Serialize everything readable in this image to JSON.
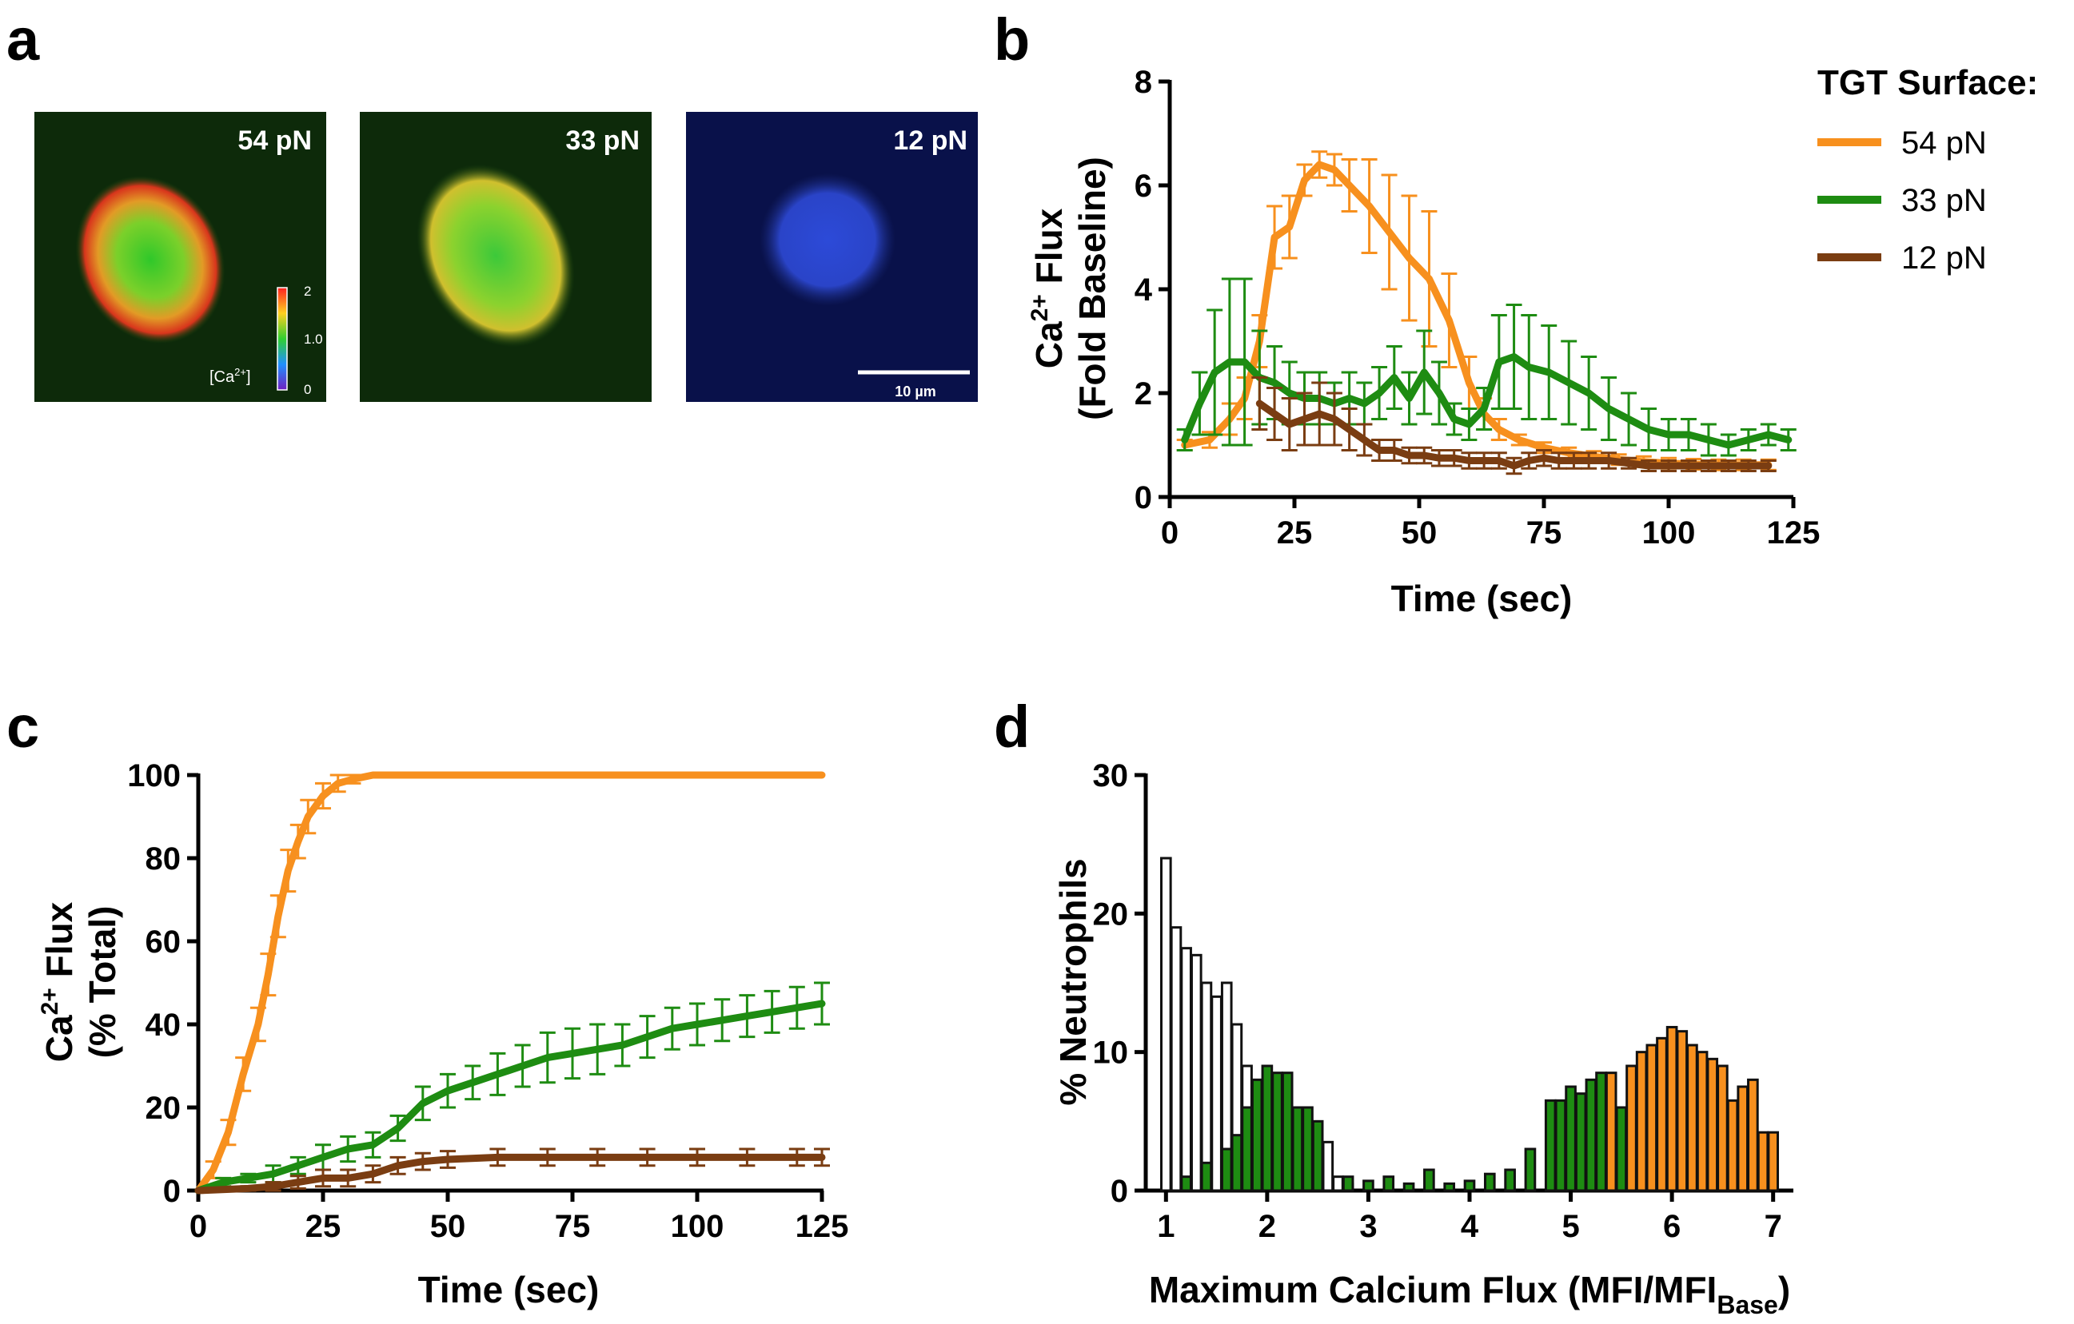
{
  "panels": {
    "a": {
      "letter": "a",
      "images": [
        {
          "label": "54 pN",
          "signal": "high calcium (red/green)"
        },
        {
          "label": "33 pN",
          "signal": "medium calcium (yellow/green)"
        },
        {
          "label": "12 pN",
          "signal": "low calcium (blue)"
        }
      ],
      "colorbar": {
        "ticks": [
          "2",
          "1.0",
          "0"
        ],
        "label": "[Ca2+]"
      },
      "scale_bar": "10 µm"
    },
    "b": {
      "letter": "b"
    },
    "c": {
      "letter": "c"
    },
    "d": {
      "letter": "d"
    }
  },
  "legend": {
    "title": "TGT Surface:",
    "items": [
      {
        "label": "54 pN",
        "color": "#F7901E"
      },
      {
        "label": "33 pN",
        "color": "#1E8C12"
      },
      {
        "label": "12 pN",
        "color": "#7A3D12"
      }
    ]
  },
  "chart_data": [
    {
      "id": "b",
      "type": "line",
      "title": "",
      "xlabel": "Time (sec)",
      "ylabel_line1": "Ca2+ Flux",
      "ylabel_line2": "(Fold Baseline)",
      "xlim": [
        0,
        125
      ],
      "ylim": [
        0,
        8
      ],
      "xticks": [
        0,
        25,
        50,
        75,
        100,
        125
      ],
      "yticks": [
        0,
        2,
        4,
        6,
        8
      ],
      "series": [
        {
          "name": "54 pN",
          "color": "#F7901E",
          "x": [
            3,
            8,
            12,
            15,
            18,
            21,
            24,
            27,
            30,
            33,
            36,
            40,
            44,
            48,
            52,
            56,
            60,
            63,
            66,
            70,
            75,
            80,
            85,
            90,
            95,
            100,
            105,
            110,
            115,
            120
          ],
          "y": [
            1.0,
            1.1,
            1.5,
            1.9,
            3.0,
            5.0,
            5.2,
            6.1,
            6.4,
            6.3,
            6.0,
            5.6,
            5.1,
            4.6,
            4.2,
            3.4,
            2.2,
            1.6,
            1.3,
            1.1,
            0.95,
            0.85,
            0.78,
            0.72,
            0.68,
            0.65,
            0.63,
            0.62,
            0.62,
            0.62
          ],
          "err": [
            0.1,
            0.15,
            0.3,
            0.4,
            0.5,
            0.6,
            0.6,
            0.3,
            0.25,
            0.3,
            0.5,
            0.9,
            1.1,
            1.2,
            1.3,
            0.9,
            0.5,
            0.3,
            0.2,
            0.1,
            0.1,
            0.1,
            0.1,
            0.1,
            0.1,
            0.1,
            0.1,
            0.1,
            0.1,
            0.1
          ]
        },
        {
          "name": "33 pN",
          "color": "#1E8C12",
          "x": [
            3,
            6,
            9,
            12,
            15,
            18,
            21,
            24,
            27,
            30,
            33,
            36,
            39,
            42,
            45,
            48,
            51,
            54,
            57,
            60,
            63,
            66,
            69,
            72,
            76,
            80,
            84,
            88,
            92,
            96,
            100,
            104,
            108,
            112,
            116,
            120,
            124
          ],
          "y": [
            1.1,
            1.8,
            2.4,
            2.6,
            2.6,
            2.3,
            2.2,
            2.0,
            1.9,
            1.9,
            1.8,
            1.9,
            1.8,
            2.0,
            2.3,
            1.9,
            2.4,
            2.0,
            1.5,
            1.4,
            1.7,
            2.6,
            2.7,
            2.5,
            2.4,
            2.2,
            2.0,
            1.7,
            1.5,
            1.3,
            1.2,
            1.2,
            1.1,
            1.0,
            1.1,
            1.2,
            1.1
          ],
          "err": [
            0.2,
            0.6,
            1.2,
            1.6,
            1.6,
            0.9,
            0.7,
            0.6,
            0.5,
            0.5,
            0.4,
            0.5,
            0.4,
            0.5,
            0.6,
            0.5,
            0.8,
            0.6,
            0.3,
            0.3,
            0.4,
            0.9,
            1.0,
            1.0,
            0.9,
            0.8,
            0.7,
            0.6,
            0.5,
            0.4,
            0.3,
            0.3,
            0.3,
            0.2,
            0.2,
            0.2,
            0.2
          ]
        },
        {
          "name": "12 pN",
          "color": "#7A3D12",
          "x": [
            18,
            21,
            24,
            27,
            30,
            33,
            36,
            39,
            42,
            45,
            48,
            51,
            54,
            57,
            60,
            63,
            66,
            69,
            72,
            75,
            78,
            81,
            84,
            88,
            92,
            96,
            100,
            104,
            108,
            112,
            116,
            120
          ],
          "y": [
            1.8,
            1.6,
            1.4,
            1.5,
            1.6,
            1.5,
            1.3,
            1.1,
            0.9,
            0.9,
            0.8,
            0.8,
            0.75,
            0.75,
            0.7,
            0.7,
            0.7,
            0.6,
            0.7,
            0.75,
            0.7,
            0.7,
            0.7,
            0.7,
            0.65,
            0.6,
            0.6,
            0.6,
            0.6,
            0.6,
            0.6,
            0.6
          ],
          "err": [
            0.5,
            0.5,
            0.5,
            0.5,
            0.6,
            0.5,
            0.4,
            0.3,
            0.2,
            0.2,
            0.15,
            0.15,
            0.15,
            0.15,
            0.15,
            0.15,
            0.15,
            0.15,
            0.15,
            0.15,
            0.15,
            0.15,
            0.15,
            0.15,
            0.1,
            0.1,
            0.1,
            0.1,
            0.1,
            0.1,
            0.1,
            0.1
          ]
        }
      ]
    },
    {
      "id": "c",
      "type": "line",
      "title": "",
      "xlabel": "Time (sec)",
      "ylabel_line1": "Ca2+ Flux",
      "ylabel_line2": "(% Total)",
      "xlim": [
        0,
        125
      ],
      "ylim": [
        0,
        100
      ],
      "xticks": [
        0,
        25,
        50,
        75,
        100,
        125
      ],
      "yticks": [
        0,
        20,
        40,
        60,
        80,
        100
      ],
      "series": [
        {
          "name": "54 pN",
          "color": "#F7901E",
          "x": [
            0,
            3,
            6,
            9,
            12,
            14,
            16,
            18,
            20,
            22,
            25,
            28,
            31,
            35,
            40,
            50,
            75,
            100,
            125
          ],
          "y": [
            0,
            5,
            14,
            28,
            40,
            52,
            66,
            77,
            84,
            90,
            95,
            98,
            99,
            100,
            100,
            100,
            100,
            100,
            100
          ],
          "err": [
            0,
            2,
            3,
            4,
            4,
            5,
            5,
            5,
            4,
            4,
            3,
            2,
            1,
            0,
            0,
            0,
            0,
            0,
            0
          ]
        },
        {
          "name": "33 pN",
          "color": "#1E8C12",
          "x": [
            0,
            5,
            10,
            15,
            20,
            25,
            30,
            35,
            40,
            45,
            50,
            55,
            60,
            65,
            70,
            75,
            80,
            85,
            90,
            95,
            100,
            105,
            110,
            115,
            120,
            125
          ],
          "y": [
            0,
            2,
            3,
            4,
            6,
            8,
            10,
            11,
            15,
            21,
            24,
            26,
            28,
            30,
            32,
            33,
            34,
            35,
            37,
            39,
            40,
            41,
            42,
            43,
            44,
            45
          ],
          "err": [
            0,
            1,
            1,
            2,
            2,
            3,
            3,
            3,
            3,
            4,
            4,
            4,
            5,
            5,
            6,
            6,
            6,
            5,
            5,
            5,
            5,
            5,
            5,
            5,
            5,
            5
          ]
        },
        {
          "name": "12 pN",
          "color": "#7A3D12",
          "x": [
            0,
            10,
            15,
            20,
            25,
            30,
            35,
            40,
            45,
            50,
            60,
            70,
            80,
            90,
            100,
            110,
            120,
            125
          ],
          "y": [
            0,
            0.5,
            1,
            2,
            3,
            3,
            4,
            6,
            7,
            7.5,
            8,
            8,
            8,
            8,
            8,
            8,
            8,
            8
          ],
          "err": [
            0,
            0.5,
            1,
            1.5,
            2,
            2,
            2,
            2,
            2,
            2,
            2,
            2,
            2,
            2,
            2,
            2,
            2,
            2
          ]
        }
      ]
    },
    {
      "id": "d",
      "type": "bar",
      "title": "",
      "xlabel": "Maximum Calcium Flux (MFI/MFIBase)",
      "xlabel_main": "Maximum Calcium Flux (MFI/MFI",
      "xlabel_sub": "Base",
      "xlabel_close": ")",
      "ylabel": "% Neutrophils",
      "xlim": [
        0.8,
        7.2
      ],
      "ylim": [
        0,
        30
      ],
      "xticks": [
        1,
        2,
        3,
        4,
        5,
        6,
        7
      ],
      "yticks": [
        0,
        10,
        20,
        30
      ],
      "bin_width": 0.1,
      "series": [
        {
          "name": "12 pN",
          "color": "#ffffff",
          "x": [
            1.0,
            1.1,
            1.2,
            1.3,
            1.4,
            1.5,
            1.6,
            1.7,
            1.8,
            1.9,
            2.0,
            2.1,
            2.2,
            2.3,
            2.4,
            2.5,
            2.6,
            2.7,
            2.8
          ],
          "y": [
            24,
            19,
            17.5,
            17,
            15,
            14,
            15,
            12,
            9,
            5,
            4,
            4,
            3,
            2,
            2,
            1.5,
            3.5,
            1,
            0.5
          ]
        },
        {
          "name": "33 pN",
          "color": "#1E8C12",
          "x": [
            1.2,
            1.4,
            1.6,
            1.7,
            1.8,
            1.9,
            2.0,
            2.1,
            2.2,
            2.3,
            2.4,
            2.5,
            2.8,
            3.0,
            3.2,
            3.4,
            3.6,
            3.8,
            4.0,
            4.2,
            4.4,
            4.6,
            4.8,
            4.9,
            5.0,
            5.1,
            5.2,
            5.3,
            5.4,
            5.5,
            5.6,
            5.7
          ],
          "y": [
            1,
            2,
            3,
            4,
            6,
            8,
            9,
            8.5,
            8.5,
            6,
            6,
            5,
            1,
            0.7,
            1,
            0.5,
            1.5,
            0.5,
            0.7,
            1.2,
            1.5,
            3,
            6.5,
            6.5,
            7.5,
            7,
            8,
            8.5,
            8.3,
            6,
            5,
            3
          ]
        },
        {
          "name": "54 pN",
          "color": "#F7901E",
          "x": [
            5.4,
            5.6,
            5.7,
            5.8,
            5.9,
            6.0,
            6.1,
            6.2,
            6.3,
            6.4,
            6.5,
            6.6,
            6.7,
            6.8,
            6.9,
            7.0
          ],
          "y": [
            8.5,
            9,
            10,
            10.5,
            11,
            11.8,
            11.5,
            10.5,
            10,
            9.5,
            9,
            6.5,
            7.5,
            8,
            4.2,
            4.2
          ]
        }
      ]
    }
  ]
}
